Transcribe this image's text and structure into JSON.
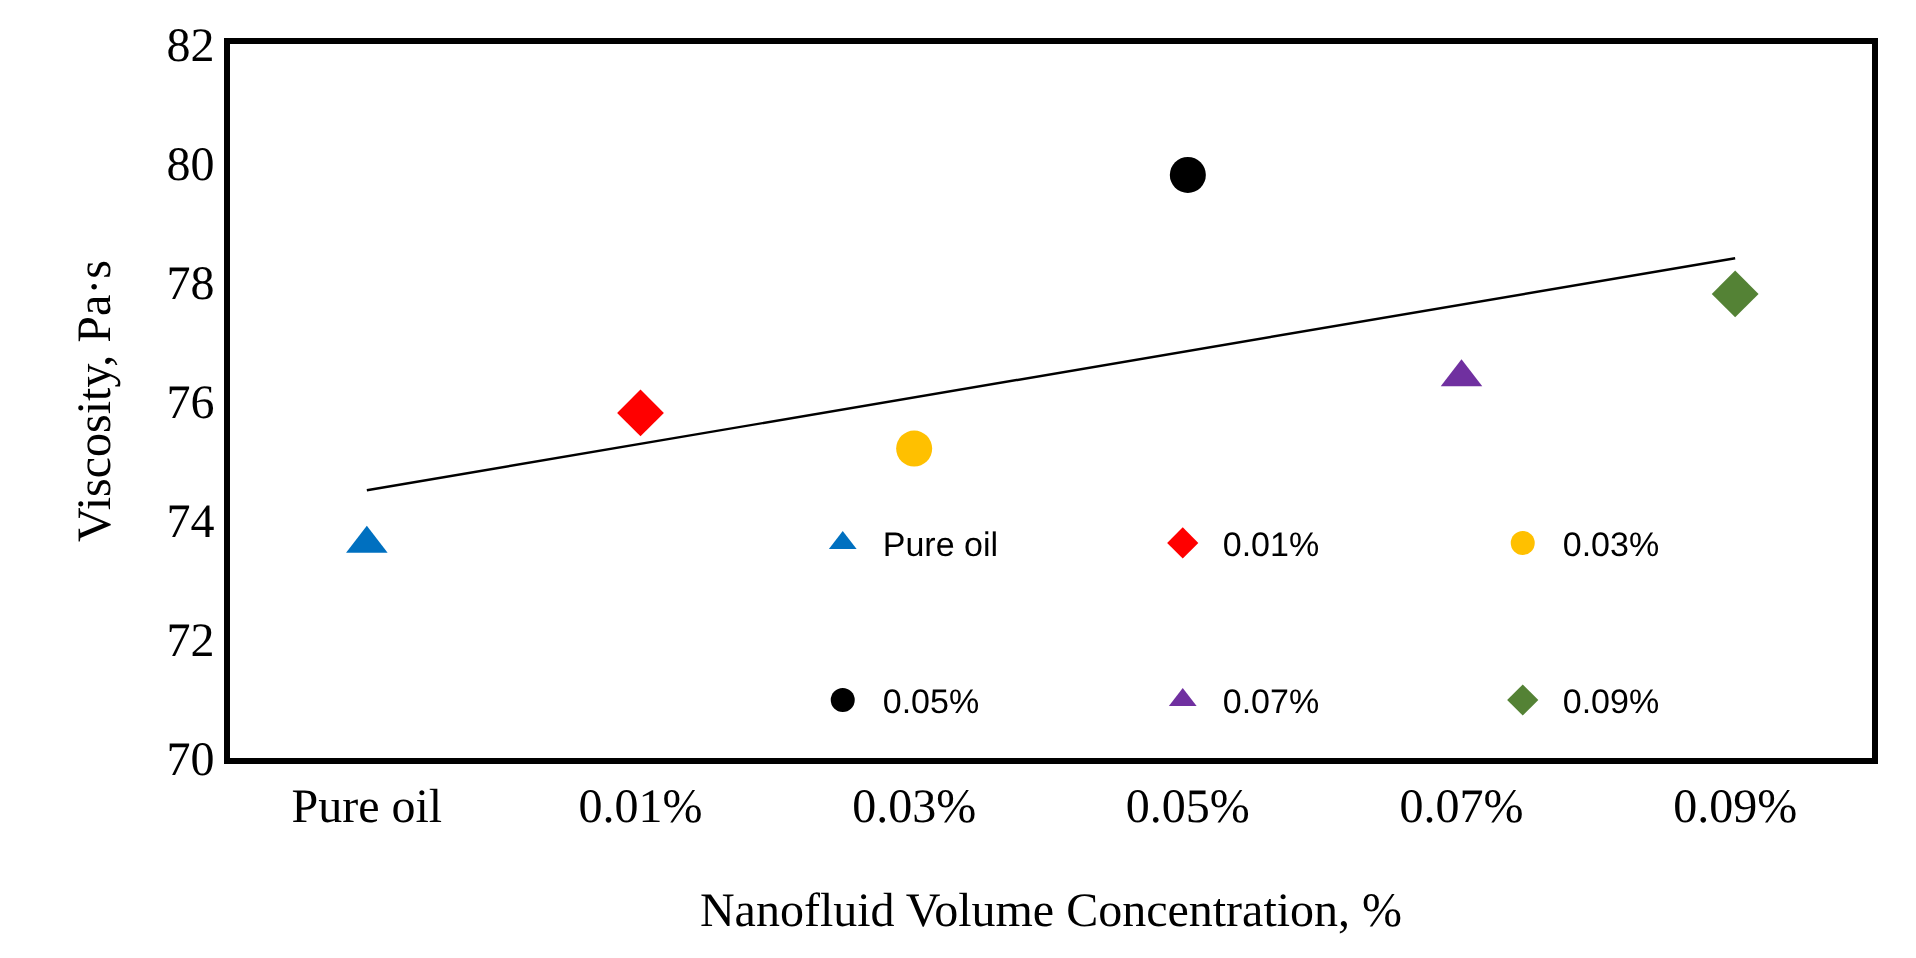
{
  "chart_data": {
    "type": "scatter",
    "xlabel": "Nanofluid Volume Concentration, %",
    "ylabel": "Viscosity, Pa·s",
    "categories": [
      "Pure oil",
      "0.01%",
      "0.03%",
      "0.05%",
      "0.07%",
      "0.09%"
    ],
    "ylim": [
      70,
      82
    ],
    "yticks": [
      70,
      72,
      74,
      76,
      78,
      80,
      82
    ],
    "grid": false,
    "legend": "right",
    "series": [
      {
        "name": "Pure oil",
        "color": "#0070c0",
        "marker": "triangle",
        "x": [
          "Pure oil"
        ],
        "values": [
          73.6
        ]
      },
      {
        "name": "0.01%",
        "color": "#ff0000",
        "marker": "diamond",
        "x": [
          "0.01%"
        ],
        "values": [
          75.8
        ]
      },
      {
        "name": "0.03%",
        "color": "#ffc000",
        "marker": "circle",
        "x": [
          "0.03%"
        ],
        "values": [
          75.2
        ]
      },
      {
        "name": "0.05%",
        "color": "#000000",
        "marker": "circle",
        "x": [
          "0.05%"
        ],
        "values": [
          79.8
        ]
      },
      {
        "name": "0.07%",
        "color": "#7030a0",
        "marker": "triangle",
        "x": [
          "0.07%"
        ],
        "values": [
          76.4
        ]
      },
      {
        "name": "0.09%",
        "color": "#548235",
        "marker": "diamond",
        "x": [
          "0.09%"
        ],
        "values": [
          77.8
        ]
      },
      {
        "type": "line",
        "color": "#000000",
        "marker": "none",
        "line_style": "solid",
        "x": [
          "Pure oil",
          "0.09%"
        ],
        "values": [
          74.5,
          78.4
        ]
      }
    ]
  }
}
